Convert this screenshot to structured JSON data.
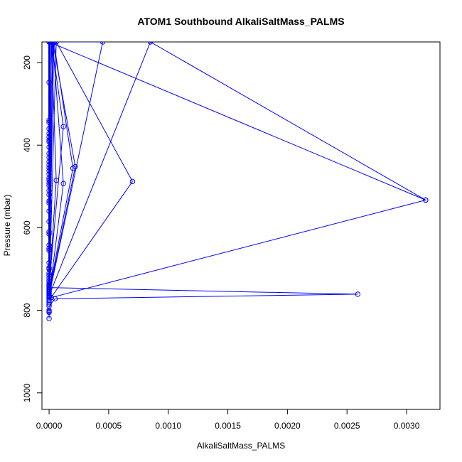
{
  "chart_data": {
    "type": "line",
    "title": "ATOM1 Southbound AlkaliSaltMass_PALMS",
    "xlabel": "AlkaliSaltMass_PALMS",
    "ylabel": "Pressure (mbar)",
    "xlim": [
      -6e-05,
      0.00328
    ],
    "ylim": [
      1040,
      150
    ],
    "y_reversed": true,
    "grid": false,
    "legend": "none",
    "x_ticks": [
      0.0,
      0.0005,
      0.001,
      0.0015,
      0.002,
      0.0025,
      0.003
    ],
    "x_tick_labels": [
      "0.0000",
      "0.0005",
      "0.0010",
      "0.0015",
      "0.0020",
      "0.0025",
      "0.0030"
    ],
    "y_ticks": [
      200,
      400,
      600,
      800,
      1000
    ],
    "y_tick_labels": [
      "200",
      "400",
      "600",
      "800",
      "1000"
    ],
    "series": [
      {
        "color": "#0000ff",
        "marker": "open-circle",
        "points": [
          {
            "x": 0.0,
            "y": 820
          },
          {
            "x": 0.0,
            "y": 805
          },
          {
            "x": 0.0,
            "y": 790
          },
          {
            "x": 5e-05,
            "y": 772
          },
          {
            "x": 0.00259,
            "y": 761
          },
          {
            "x": 0.0,
            "y": 745
          },
          {
            "x": 0.0,
            "y": 733
          },
          {
            "x": 0.0,
            "y": 710
          },
          {
            "x": 2e-05,
            "y": 769
          },
          {
            "x": 0.00316,
            "y": 533
          },
          {
            "x": 0.0,
            "y": 150
          },
          {
            "x": 0.0,
            "y": 776
          },
          {
            "x": 0.0007,
            "y": 488
          },
          {
            "x": 6e-05,
            "y": 150
          },
          {
            "x": 0.0,
            "y": 767
          },
          {
            "x": 0.00012,
            "y": 493
          },
          {
            "x": 3e-05,
            "y": 150
          },
          {
            "x": 0.0,
            "y": 760
          },
          {
            "x": 0.00022,
            "y": 452
          },
          {
            "x": 3e-05,
            "y": 150
          },
          {
            "x": 0.0,
            "y": 755
          },
          {
            "x": 0.0002,
            "y": 456
          },
          {
            "x": 4e-05,
            "y": 150
          },
          {
            "x": 0.0,
            "y": 750
          },
          {
            "x": 6e-05,
            "y": 485
          },
          {
            "x": 2e-05,
            "y": 150
          },
          {
            "x": 0.0,
            "y": 740
          },
          {
            "x": 0.00012,
            "y": 355
          },
          {
            "x": 2e-05,
            "y": 150
          },
          {
            "x": 0.0,
            "y": 728
          },
          {
            "x": 1e-05,
            "y": 150
          },
          {
            "x": 0.0,
            "y": 700
          },
          {
            "x": 0.0,
            "y": 150
          },
          {
            "x": 0.00045,
            "y": 150
          },
          {
            "x": 0.0,
            "y": 765
          },
          {
            "x": 0.00085,
            "y": 150
          },
          {
            "x": 0.00316,
            "y": 533
          }
        ],
        "isolated_markers": [
          {
            "x": 0.0,
            "y": 248
          },
          {
            "x": 0.0,
            "y": 340
          },
          {
            "x": 0.0,
            "y": 345
          },
          {
            "x": 0.0,
            "y": 360
          },
          {
            "x": 0.0,
            "y": 372
          },
          {
            "x": 0.0,
            "y": 380
          },
          {
            "x": 0.0,
            "y": 388
          },
          {
            "x": 0.0,
            "y": 392
          },
          {
            "x": 0.0,
            "y": 405
          },
          {
            "x": 0.0,
            "y": 420
          },
          {
            "x": 0.0,
            "y": 430
          },
          {
            "x": 0.0,
            "y": 440
          },
          {
            "x": 0.0,
            "y": 448
          },
          {
            "x": 0.0,
            "y": 455
          },
          {
            "x": 0.0,
            "y": 462
          },
          {
            "x": 0.0,
            "y": 470
          },
          {
            "x": 0.0,
            "y": 480
          },
          {
            "x": 0.0,
            "y": 485
          },
          {
            "x": 0.0,
            "y": 492
          },
          {
            "x": 0.0,
            "y": 498
          },
          {
            "x": 0.0,
            "y": 510
          },
          {
            "x": 0.0,
            "y": 520
          },
          {
            "x": 0.0,
            "y": 535
          },
          {
            "x": 0.0,
            "y": 540
          },
          {
            "x": 0.0,
            "y": 560
          },
          {
            "x": 0.0,
            "y": 585
          },
          {
            "x": 0.0,
            "y": 610
          },
          {
            "x": 0.0,
            "y": 615
          },
          {
            "x": 0.0,
            "y": 642
          },
          {
            "x": 0.0,
            "y": 650
          },
          {
            "x": 0.0,
            "y": 655
          },
          {
            "x": 0.0,
            "y": 685
          },
          {
            "x": 0.0,
            "y": 697
          },
          {
            "x": 0.0,
            "y": 700
          },
          {
            "x": 0.0,
            "y": 715
          },
          {
            "x": 0.0,
            "y": 722
          },
          {
            "x": 0.0,
            "y": 738
          },
          {
            "x": 0.0,
            "y": 742
          },
          {
            "x": 0.0,
            "y": 748
          },
          {
            "x": 0.0,
            "y": 752
          },
          {
            "x": 0.0,
            "y": 758
          },
          {
            "x": 0.0,
            "y": 763
          },
          {
            "x": 0.0,
            "y": 770
          },
          {
            "x": 0.0,
            "y": 775
          },
          {
            "x": 0.0,
            "y": 780
          },
          {
            "x": 0.0,
            "y": 785
          },
          {
            "x": 0.0,
            "y": 800
          },
          {
            "x": 0.0,
            "y": 803
          }
        ]
      }
    ]
  }
}
